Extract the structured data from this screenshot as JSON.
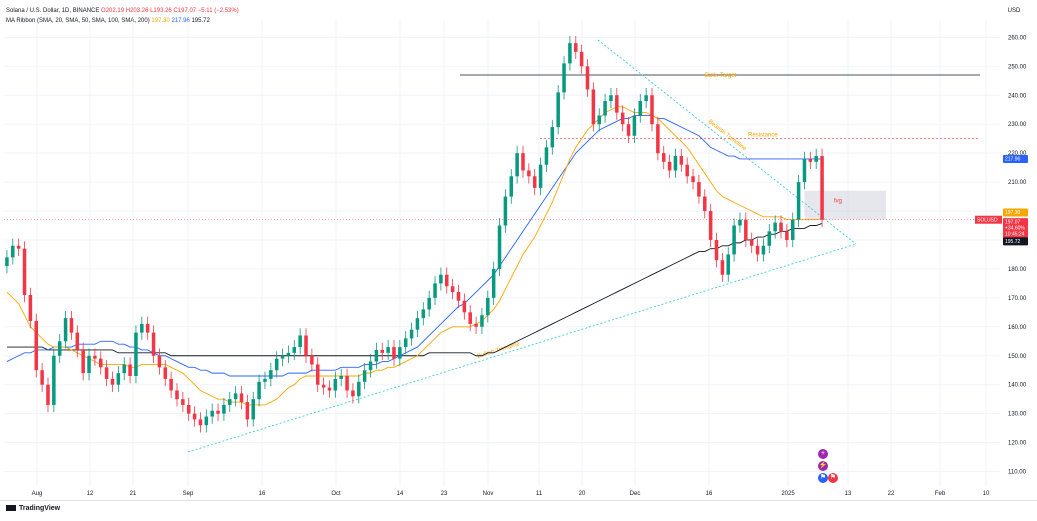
{
  "legend": {
    "symbol": "Solana / U.S. Dollar, 1D, BINANCE",
    "ohlc": "O202.19 H203.26 L193.26 C197.07 −5.11 (−2.53%)",
    "indicator": "MA Ribbon (SMA, 20, SMA, 50, SMA, 100, SMA, 200)",
    "v1": "197.30",
    "v2": "217.96",
    "v3": "195.72"
  },
  "currency": "USD",
  "brand": "TradingView",
  "colors": {
    "up": "#089981",
    "down": "#f23645",
    "ma20": "#f7a600",
    "ma50": "#2962ff",
    "ma200": "#131722",
    "trend": "#26c6da",
    "grid": "#f0f3fa"
  },
  "annotations": {
    "bulls_target": "Bulls Target",
    "resistance": "Resistance",
    "bearish_trendline": "Bearish Trendline",
    "bullish_trendline": "Bullish Trendline",
    "fvg": "fvg"
  },
  "price_labels": {
    "symbol_tag": "SOLUSD",
    "current": "197.07",
    "change": "+34.60%",
    "timer": "10:45:24",
    "ma20_tag": "197.30",
    "ma50_tag": "217.96",
    "ma200_tag": "195.72"
  },
  "chart_data": {
    "type": "candlestick",
    "y_ticks": [
      "260.00",
      "250.00",
      "240.00",
      "230.00",
      "220.00",
      "210.00",
      "200.00",
      "190.00",
      "180.00",
      "170.00",
      "160.00",
      "150.00",
      "140.00",
      "130.00",
      "120.00",
      "110.00"
    ],
    "y_range": [
      105,
      266
    ],
    "x_ticks": [
      "Aug",
      "12",
      "21",
      "Sep",
      "16",
      "Oct",
      "14",
      "23",
      "Nov",
      "11",
      "20",
      "Dec",
      "16",
      "2025",
      "13",
      "22",
      "Feb",
      "10"
    ],
    "closes": [
      184,
      188,
      187,
      171,
      162,
      145,
      140,
      133,
      150,
      155,
      163,
      158,
      152,
      144,
      150,
      149,
      146,
      142,
      140,
      144,
      147,
      143,
      158,
      161,
      158,
      150,
      146,
      142,
      138,
      135,
      133,
      130,
      128,
      126,
      129,
      131,
      130,
      133,
      135,
      137,
      134,
      128,
      135,
      141,
      142,
      145,
      149,
      150,
      151,
      153,
      157,
      150,
      147,
      140,
      139,
      138,
      142,
      143,
      138,
      136,
      141,
      145,
      148,
      152,
      151,
      153,
      149,
      153,
      156,
      159,
      163,
      166,
      170,
      175,
      178,
      174,
      172,
      169,
      165,
      161,
      160,
      164,
      170,
      180,
      195,
      205,
      212,
      220,
      214,
      212,
      208,
      216,
      222,
      229,
      241,
      251,
      258,
      255,
      250,
      242,
      230,
      233,
      238,
      240,
      234,
      230,
      226,
      233,
      238,
      240,
      230,
      220,
      217,
      214,
      219,
      216,
      212,
      210,
      205,
      200,
      190,
      183,
      178,
      185,
      195,
      197,
      190,
      188,
      185,
      188,
      193,
      196,
      193,
      190,
      197,
      210,
      218,
      217,
      219,
      197
    ],
    "ma20": [
      172,
      170,
      168,
      164,
      160,
      158,
      156,
      154,
      153,
      153,
      153,
      152,
      151,
      150,
      149,
      148,
      147,
      147,
      147,
      147,
      147,
      146,
      146,
      147,
      147,
      147,
      147,
      147,
      146,
      145,
      144,
      142,
      140,
      138,
      137,
      136,
      135,
      135,
      134,
      134,
      134,
      133,
      133,
      133,
      133,
      134,
      135,
      137,
      139,
      140,
      142,
      143,
      143,
      143,
      143,
      143,
      143,
      143,
      143,
      143,
      143,
      144,
      144,
      145,
      145,
      146,
      146,
      147,
      148,
      149,
      150,
      152,
      154,
      156,
      158,
      159,
      160,
      160,
      160,
      160,
      161,
      162,
      164,
      166,
      169,
      173,
      177,
      181,
      185,
      188,
      191,
      195,
      199,
      203,
      208,
      213,
      218,
      222,
      225,
      228,
      230,
      232,
      234,
      235,
      236,
      236,
      235,
      234,
      234,
      234,
      233,
      232,
      230,
      228,
      226,
      224,
      222,
      219,
      216,
      213,
      210,
      207,
      205,
      204,
      203,
      202,
      201,
      200,
      199,
      198,
      198,
      198,
      198,
      197,
      197,
      197,
      197,
      197,
      197,
      197.3
    ],
    "ma50": [
      148,
      149,
      150,
      151,
      151,
      152,
      152,
      152,
      153,
      153,
      153,
      153,
      154,
      154,
      154,
      154,
      155,
      155,
      155,
      154,
      154,
      153,
      153,
      152,
      152,
      151,
      150,
      150,
      149,
      148,
      147,
      146,
      146,
      145,
      145,
      144,
      144,
      144,
      143,
      143,
      143,
      143,
      143,
      143,
      143,
      143,
      143,
      143,
      144,
      144,
      144,
      144,
      145,
      145,
      145,
      145,
      145,
      146,
      146,
      146,
      146,
      147,
      147,
      147,
      148,
      148,
      149,
      150,
      151,
      152,
      153,
      155,
      157,
      159,
      161,
      163,
      165,
      167,
      168,
      170,
      172,
      174,
      176,
      178,
      181,
      184,
      187,
      190,
      193,
      196,
      199,
      202,
      205,
      208,
      211,
      214,
      217,
      220,
      222,
      224,
      226,
      228,
      229,
      230,
      231,
      232,
      232,
      233,
      233,
      233,
      233,
      232,
      232,
      231,
      230,
      229,
      228,
      227,
      226,
      224,
      222,
      221,
      220,
      219,
      219,
      218,
      218,
      218,
      218,
      218,
      218,
      218,
      218,
      218,
      218,
      218,
      218,
      218,
      218,
      217.96
    ],
    "ma200": [
      153,
      153,
      153,
      153,
      153,
      153,
      153,
      152,
      152,
      152,
      152,
      152,
      152,
      152,
      152,
      152,
      152,
      152,
      152,
      151,
      151,
      151,
      151,
      151,
      151,
      151,
      151,
      151,
      150,
      150,
      150,
      150,
      150,
      150,
      150,
      150,
      150,
      150,
      150,
      150,
      150,
      150,
      150,
      150,
      150,
      150,
      150,
      150,
      150,
      150,
      150,
      150,
      150,
      150,
      150,
      150,
      150,
      150,
      150,
      150,
      150,
      150,
      150,
      150,
      150,
      150,
      150,
      150,
      150,
      150,
      150,
      150,
      151,
      151,
      151,
      151,
      151,
      151,
      151,
      151,
      150,
      150,
      151,
      151,
      152,
      153,
      154,
      155,
      156,
      157,
      158,
      159,
      160,
      161,
      162,
      163,
      164,
      165,
      166,
      167,
      168,
      169,
      170,
      171,
      172,
      173,
      174,
      175,
      176,
      177,
      178,
      179,
      180,
      181,
      182,
      183,
      184,
      185,
      186,
      186,
      187,
      187,
      188,
      188,
      189,
      189,
      190,
      190,
      191,
      191,
      192,
      192,
      193,
      193,
      194,
      194,
      194,
      195,
      195,
      195.72
    ],
    "bulls_target_level": 247,
    "resistance_level": 225,
    "fvg_range": [
      197,
      207
    ],
    "current_price": 197.07
  }
}
